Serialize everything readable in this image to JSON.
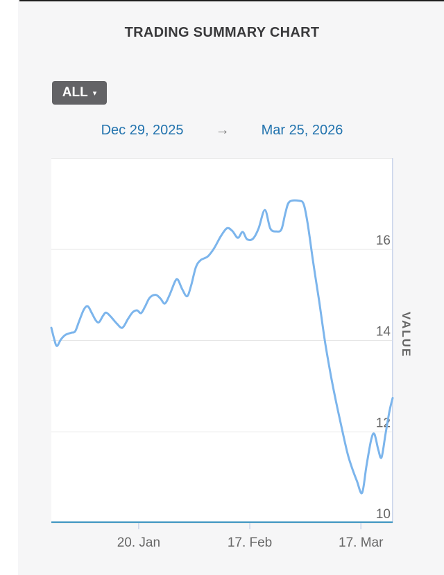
{
  "page": {
    "title": "TRADING SUMMARY CHART"
  },
  "controls": {
    "range_selector": {
      "label": "ALL",
      "caret": "▾"
    },
    "date_range": {
      "start": "Dec 29, 2025",
      "arrow": "→",
      "end": "Mar 25, 2026"
    }
  },
  "chart_data": {
    "type": "line",
    "title": "TRADING SUMMARY CHART",
    "x_unit": "days since Dec 29, 2025",
    "x_start_date": "Dec 29, 2025",
    "x_end_date": "Mar 25, 2026",
    "x_range": [
      0,
      86
    ],
    "y_range": [
      10,
      18
    ],
    "y_axis_title": "VALUE",
    "grid": true,
    "legend": false,
    "yticks": [
      {
        "value": 10,
        "label": "10"
      },
      {
        "value": 12,
        "label": "12"
      },
      {
        "value": 14,
        "label": "14"
      },
      {
        "value": 16,
        "label": "16"
      }
    ],
    "xticks": [
      {
        "day": 22,
        "label": "20. Jan"
      },
      {
        "day": 50,
        "label": "17. Feb"
      },
      {
        "day": 78,
        "label": "17. Mar"
      }
    ],
    "colors": {
      "series": "#7cb5ec",
      "grid": "#e6e6e6",
      "axis_line": "#4d9dc6",
      "tick": "#ccd6eb",
      "labels": "#666666",
      "plot_background": "#ffffff"
    },
    "series": [
      {
        "name": "VALUE",
        "color": "#7cb5ec",
        "points": [
          [
            0,
            14.28
          ],
          [
            0.7,
            14.04
          ],
          [
            1.4,
            13.88
          ],
          [
            2.4,
            14.02
          ],
          [
            3.5,
            14.12
          ],
          [
            5,
            14.17
          ],
          [
            6,
            14.2
          ],
          [
            7,
            14.42
          ],
          [
            8.2,
            14.68
          ],
          [
            9.2,
            14.75
          ],
          [
            10.2,
            14.6
          ],
          [
            11.2,
            14.44
          ],
          [
            12,
            14.4
          ],
          [
            13,
            14.54
          ],
          [
            13.8,
            14.61
          ],
          [
            15,
            14.52
          ],
          [
            16.5,
            14.37
          ],
          [
            17.9,
            14.28
          ],
          [
            19.3,
            14.47
          ],
          [
            20.5,
            14.62
          ],
          [
            21.6,
            14.66
          ],
          [
            22.6,
            14.6
          ],
          [
            23.6,
            14.74
          ],
          [
            24.8,
            14.94
          ],
          [
            26.3,
            15.0
          ],
          [
            27.5,
            14.92
          ],
          [
            28.6,
            14.81
          ],
          [
            29.8,
            15.0
          ],
          [
            31.2,
            15.3
          ],
          [
            31.9,
            15.33
          ],
          [
            33,
            15.12
          ],
          [
            34.2,
            14.97
          ],
          [
            35.2,
            15.2
          ],
          [
            36.4,
            15.6
          ],
          [
            37.6,
            15.76
          ],
          [
            39.4,
            15.84
          ],
          [
            41,
            16.02
          ],
          [
            42.8,
            16.3
          ],
          [
            44.3,
            16.46
          ],
          [
            45.6,
            16.4
          ],
          [
            47,
            16.25
          ],
          [
            48.2,
            16.38
          ],
          [
            49.3,
            16.22
          ],
          [
            50.8,
            16.23
          ],
          [
            52.2,
            16.45
          ],
          [
            53.8,
            16.86
          ],
          [
            55.2,
            16.45
          ],
          [
            56.8,
            16.39
          ],
          [
            58,
            16.44
          ],
          [
            59,
            16.8
          ],
          [
            60,
            17.04
          ],
          [
            62.5,
            17.06
          ],
          [
            63.6,
            16.98
          ],
          [
            64.6,
            16.55
          ],
          [
            66,
            15.7
          ],
          [
            67.5,
            14.85
          ],
          [
            69,
            13.95
          ],
          [
            70.5,
            13.2
          ],
          [
            72,
            12.55
          ],
          [
            73.5,
            11.95
          ],
          [
            74.7,
            11.5
          ],
          [
            75.8,
            11.2
          ],
          [
            77,
            10.92
          ],
          [
            78.3,
            10.66
          ],
          [
            79.4,
            11.25
          ],
          [
            80.6,
            11.83
          ],
          [
            81.4,
            11.95
          ],
          [
            82.4,
            11.6
          ],
          [
            83.2,
            11.44
          ],
          [
            84.2,
            11.95
          ],
          [
            85.2,
            12.45
          ],
          [
            86,
            12.74
          ]
        ]
      }
    ]
  }
}
